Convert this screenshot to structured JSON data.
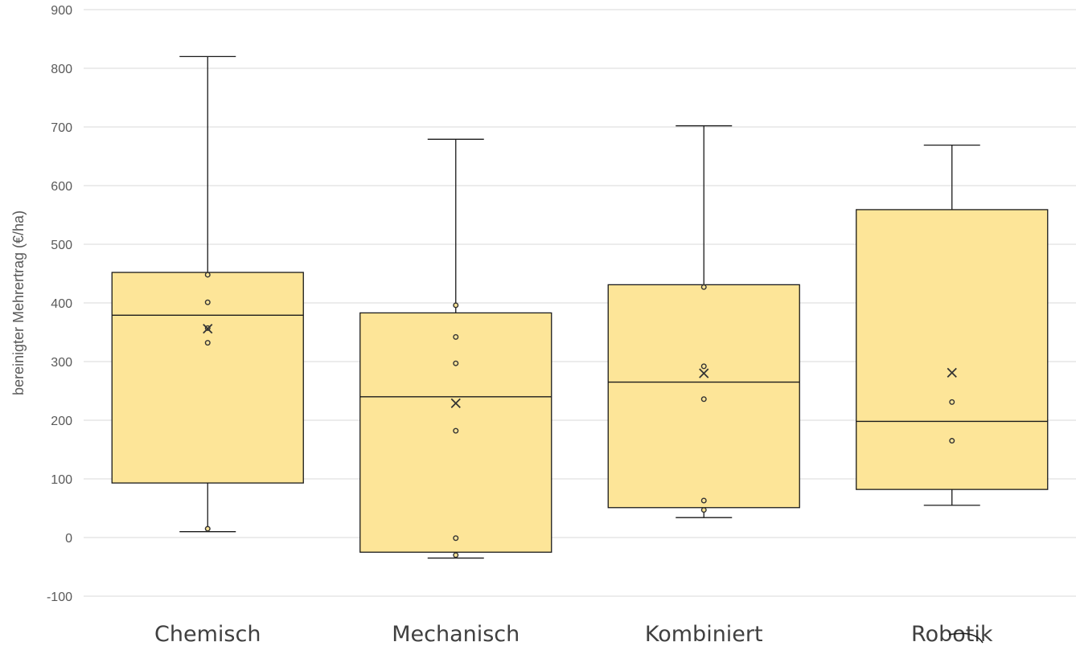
{
  "chart_data": {
    "type": "box",
    "ylabel": "bereinigter Mehrertrag (€/ha)",
    "ylim": [
      -100,
      900
    ],
    "yticks": [
      -100,
      0,
      100,
      200,
      300,
      400,
      500,
      600,
      700,
      800,
      900
    ],
    "grid": true,
    "box_color": "#fde598",
    "categories": [
      "Chemisch",
      "Mechanisch",
      "Kombiniert",
      "Robotik"
    ],
    "boxes": [
      {
        "category": "Chemisch",
        "min": 10,
        "q1": 93,
        "median": 379,
        "q3": 452,
        "max": 820,
        "mean": 356,
        "points": [
          15,
          332,
          357,
          401,
          448
        ]
      },
      {
        "category": "Mechanisch",
        "min": -35,
        "q1": -25,
        "median": 240,
        "q3": 383,
        "max": 679,
        "mean": 229,
        "points": [
          -30,
          -1,
          182,
          297,
          342,
          396
        ]
      },
      {
        "category": "Kombiniert",
        "min": 34,
        "q1": 51,
        "median": 265,
        "q3": 431,
        "max": 702,
        "mean": 280,
        "points": [
          47,
          63,
          236,
          292,
          427
        ]
      },
      {
        "category": "Robotik",
        "min": 55,
        "q1": 82,
        "median": 198,
        "q3": 559,
        "max": 669,
        "mean": 281,
        "points": [
          165,
          231
        ]
      }
    ]
  }
}
